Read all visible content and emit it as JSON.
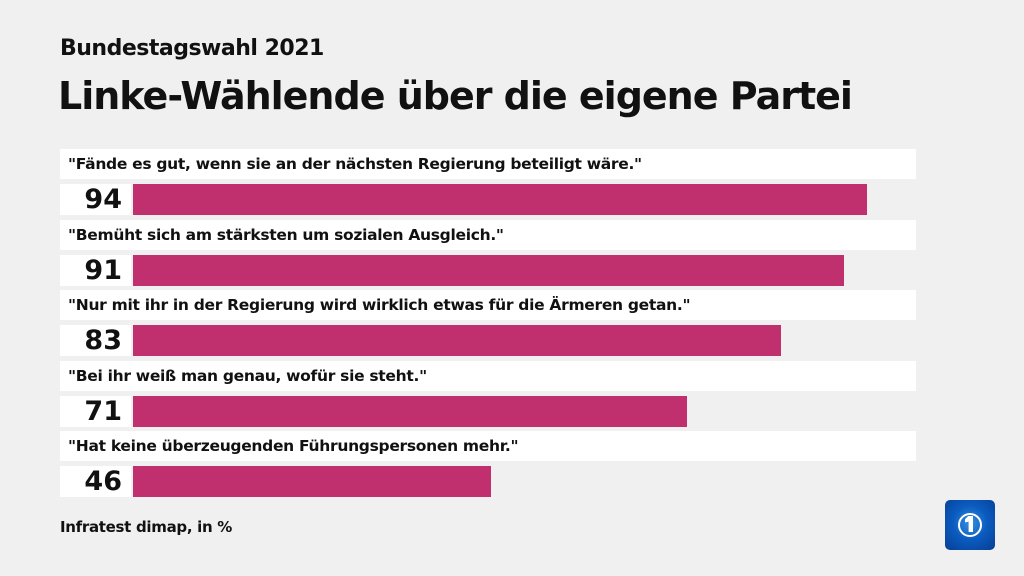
{
  "header": {
    "subtitle": "Bundestagswahl 2021",
    "title": "Linke-Wählende über die eigene Partei"
  },
  "chart_data": {
    "type": "bar",
    "orientation": "horizontal",
    "categories": [
      "\"Fände es gut, wenn sie an der nächsten Regierung beteiligt wäre.\"",
      "\"Bemüht sich am stärksten um sozialen Ausgleich.\"",
      "\"Nur mit ihr in der Regierung wird wirklich etwas für die Ärmeren getan.\"",
      "\"Bei ihr weiß man genau, wofür sie steht.\"",
      "\"Hat keine überzeugenden Führungspersonen mehr.\""
    ],
    "values": [
      94,
      91,
      83,
      71,
      46
    ],
    "xlim": [
      0,
      100
    ],
    "bar_color": "#c0306e"
  },
  "footer": {
    "source": "Infratest dimap, in %"
  },
  "logo": {
    "name": "tagesschau-logo-icon"
  }
}
